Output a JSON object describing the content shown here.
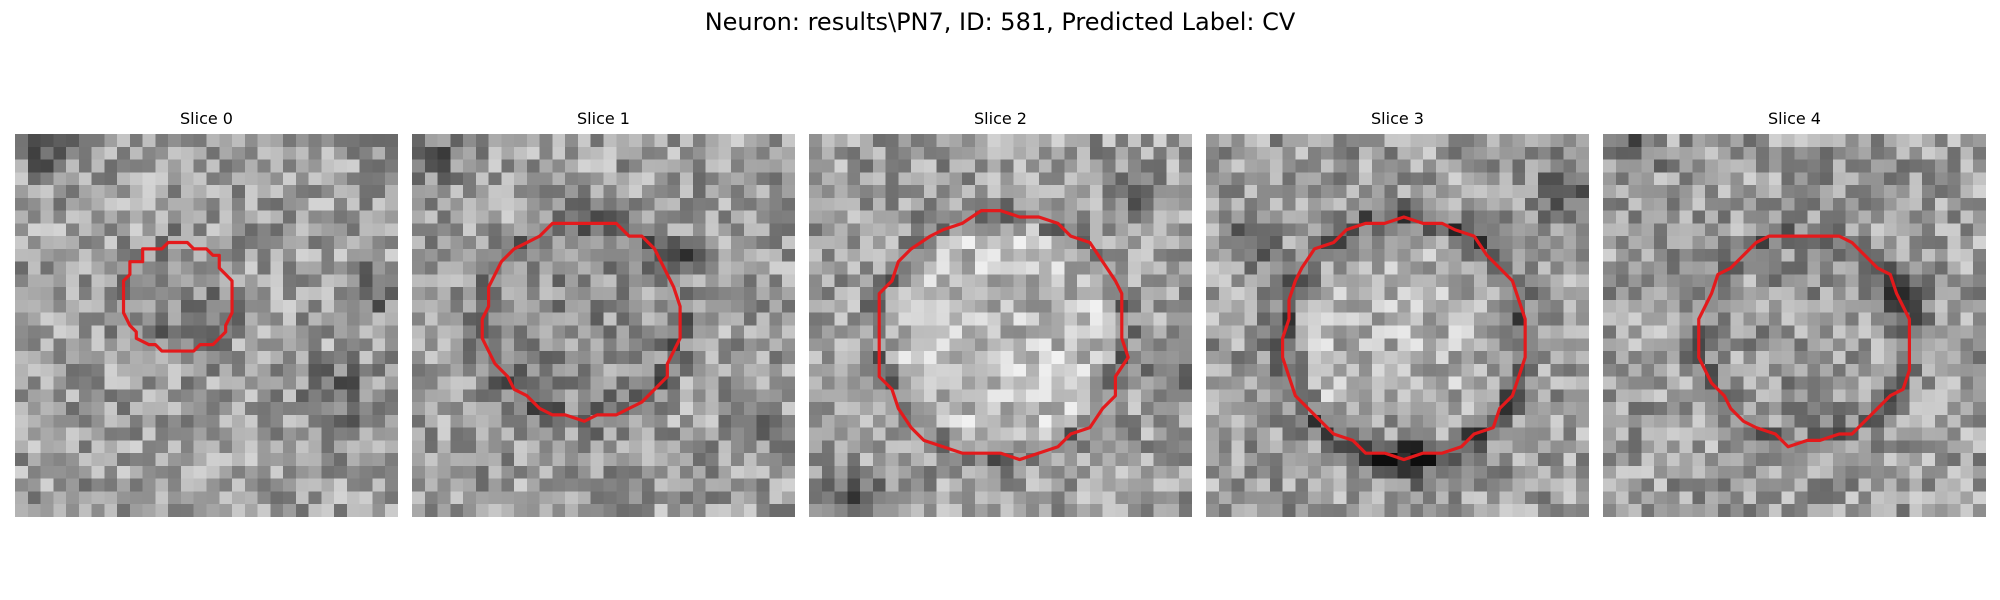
{
  "figure": {
    "title": "Neuron: results\\PN7, ID: 581, Predicted Label: CV"
  },
  "panels": [
    {
      "title": "Slice 0"
    },
    {
      "title": "Slice 1"
    },
    {
      "title": "Slice 2"
    },
    {
      "title": "Slice 3"
    },
    {
      "title": "Slice 4"
    }
  ],
  "colors": {
    "contour": "#e41a1c",
    "background": "#ffffff"
  }
}
